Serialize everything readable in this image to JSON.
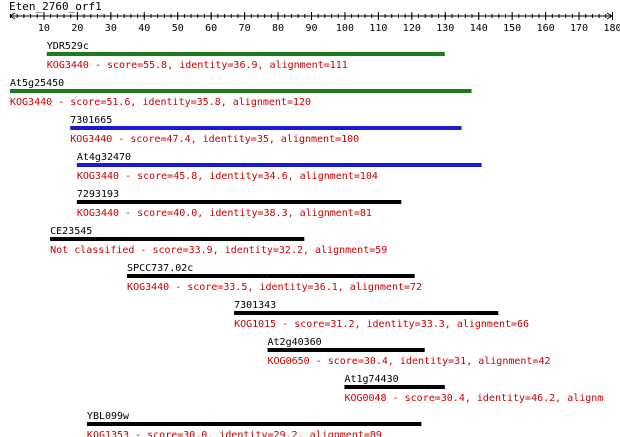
{
  "query": {
    "name": "Eten_2760_orf1",
    "length": 180
  },
  "axis": {
    "min": 0,
    "max": 180,
    "major_ticks": [
      10,
      20,
      30,
      40,
      50,
      60,
      70,
      80,
      90,
      100,
      110,
      120,
      130,
      140,
      150,
      160,
      170,
      180
    ],
    "minor_step": 2
  },
  "colors": {
    "green": "#1e7a1e",
    "blue": "#1a1ad6",
    "black": "#000000",
    "text": "#000000",
    "desc": "#cc0000"
  },
  "hits": [
    {
      "name": "YDR529c",
      "start": 11,
      "end": 130,
      "color": "green",
      "desc": "KOG3440 - score=55.8, identity=36.9, alignment=111"
    },
    {
      "name": "At5g25450",
      "start": 0,
      "end": 138,
      "color": "green",
      "desc": "KOG3440 - score=51.6, identity=35.8, alignment=120"
    },
    {
      "name": "7301665",
      "start": 18,
      "end": 135,
      "color": "blue",
      "desc": "KOG3440 - score=47.4, identity=35, alignment=100"
    },
    {
      "name": "At4g32470",
      "start": 20,
      "end": 141,
      "color": "blue",
      "desc": "KOG3440 - score=45.8, identity=34.6, alignment=104"
    },
    {
      "name": "7293193",
      "start": 20,
      "end": 117,
      "color": "black",
      "desc": "KOG3440 - score=40.0, identity=38.3, alignment=81"
    },
    {
      "name": "CE23545",
      "start": 12,
      "end": 88,
      "color": "black",
      "desc": "Not classified - score=33.9, identity=32.2, alignment=59"
    },
    {
      "name": "SPCC737.02c",
      "start": 35,
      "end": 121,
      "color": "black",
      "desc": "KOG3440 - score=33.5, identity=36.1, alignment=72"
    },
    {
      "name": "7301343",
      "start": 67,
      "end": 146,
      "color": "black",
      "desc": "KOG1015 - score=31.2, identity=33.3, alignment=66"
    },
    {
      "name": "At2g40360",
      "start": 77,
      "end": 124,
      "color": "black",
      "desc": "KOG0650 - score=30.4, identity=31, alignment=42"
    },
    {
      "name": "At1g74430",
      "start": 100,
      "end": 130,
      "color": "black",
      "desc": "KOG0048 - score=30.4, identity=46.2, alignm"
    },
    {
      "name": "YBL099w",
      "start": 23,
      "end": 123,
      "color": "black",
      "desc": "KOG1353 - score=30.0, identity=29.2, alignment=89"
    }
  ]
}
